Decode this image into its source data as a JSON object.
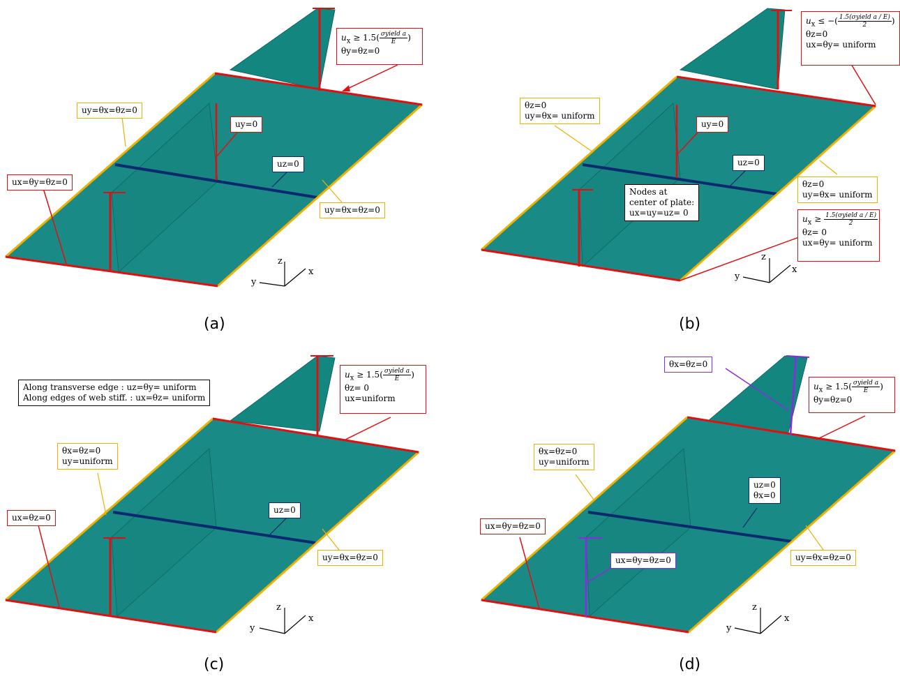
{
  "panels": {
    "a": {
      "caption": "(a)",
      "top_right": {
        "pre": "u",
        "sub": "x",
        "rel": "≥",
        "coef": "1.5",
        "num": "σyield a",
        "den": "E",
        "line2": "θy=θz=0"
      },
      "left_long_edge": "uy=θx=θz=0",
      "center_web": "uy=0",
      "mid_line": "uz=0",
      "left_transverse": "ux=θy=θz=0",
      "right_long_edge": "uy=θx=θz=0"
    },
    "b": {
      "caption": "(b)",
      "top_right": {
        "pre": "u",
        "sub": "x",
        "rel": "≤ −",
        "coef": "1.5",
        "num": "σyield a",
        "den": "E",
        "den2": "2",
        "line2": "θz=0",
        "line3": "ux=θy= uniform"
      },
      "left_long_edge": [
        "θz=0",
        "uy=θx= uniform"
      ],
      "center_web": "uy=0",
      "mid_line": "uz=0",
      "center_nodes": [
        "Nodes at",
        "center of plate:",
        "ux=uy=uz= 0"
      ],
      "right_long_edge": [
        "θz=0",
        "uy=θx= uniform"
      ],
      "bottom_right": {
        "pre": "u",
        "sub": "x",
        "rel": "≥",
        "coef": "1.5",
        "num": "σyield a",
        "den": "E",
        "den2": "2",
        "line2": "θz= 0",
        "line3": "ux=θy= uniform"
      }
    },
    "c": {
      "caption": "(c)",
      "note": [
        "Along transverse edge : uz=θy= uniform",
        "Along edges of web stiff. : ux=θz= uniform"
      ],
      "top_right": {
        "pre": "u",
        "sub": "x",
        "rel": "≥",
        "coef": "1.5",
        "num": "σyield a",
        "den": "E",
        "line2": "θz= 0",
        "line3": "ux=uniform"
      },
      "left_long_edge": [
        "θx=θz=0",
        "uy=uniform"
      ],
      "mid_line": "uz=0",
      "left_transverse": "ux=θz=0",
      "right_long_edge": "uy=θx=θz=0"
    },
    "d": {
      "caption": "(d)",
      "top_web": "θx=θz=0",
      "top_right": {
        "pre": "u",
        "sub": "x",
        "rel": "≥",
        "coef": "1.5",
        "num": "σyield a",
        "den": "E",
        "line2": "θy=θz=0"
      },
      "left_long_edge": [
        "θx=θz=0",
        "uy=uniform"
      ],
      "mid_line": [
        "uz=0",
        "θx=0"
      ],
      "left_transverse": "ux=θy=θz=0",
      "bottom_web": "ux=θy=θz=0",
      "right_long_edge": "uy=θx=θz=0"
    }
  },
  "axes": {
    "x": "x",
    "y": "y",
    "z": "z"
  },
  "colors": {
    "plate": "#1a8a86",
    "plate_dark": "#0f6a66",
    "red": "#e01010",
    "yellow": "#f0b000",
    "navy": "#0a2a6e",
    "purple": "#8a2be2"
  }
}
